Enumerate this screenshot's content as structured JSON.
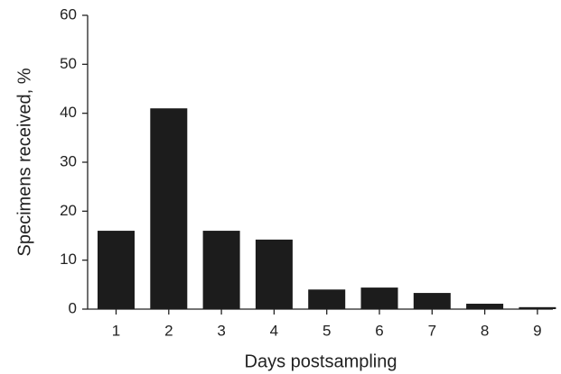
{
  "chart_data": {
    "type": "bar",
    "x_label": "Days postsampling",
    "y_label": "Specimens received, %",
    "categories": [
      "1",
      "2",
      "3",
      "4",
      "5",
      "6",
      "7",
      "8",
      "9"
    ],
    "values": [
      16,
      41,
      16,
      14.2,
      4,
      4.4,
      3.3,
      1.1,
      0.4
    ],
    "color": "#1c1c1c",
    "ylim": [
      0,
      60
    ],
    "yticks": [
      0,
      10,
      20,
      30,
      40,
      50,
      60
    ],
    "grid": false
  }
}
